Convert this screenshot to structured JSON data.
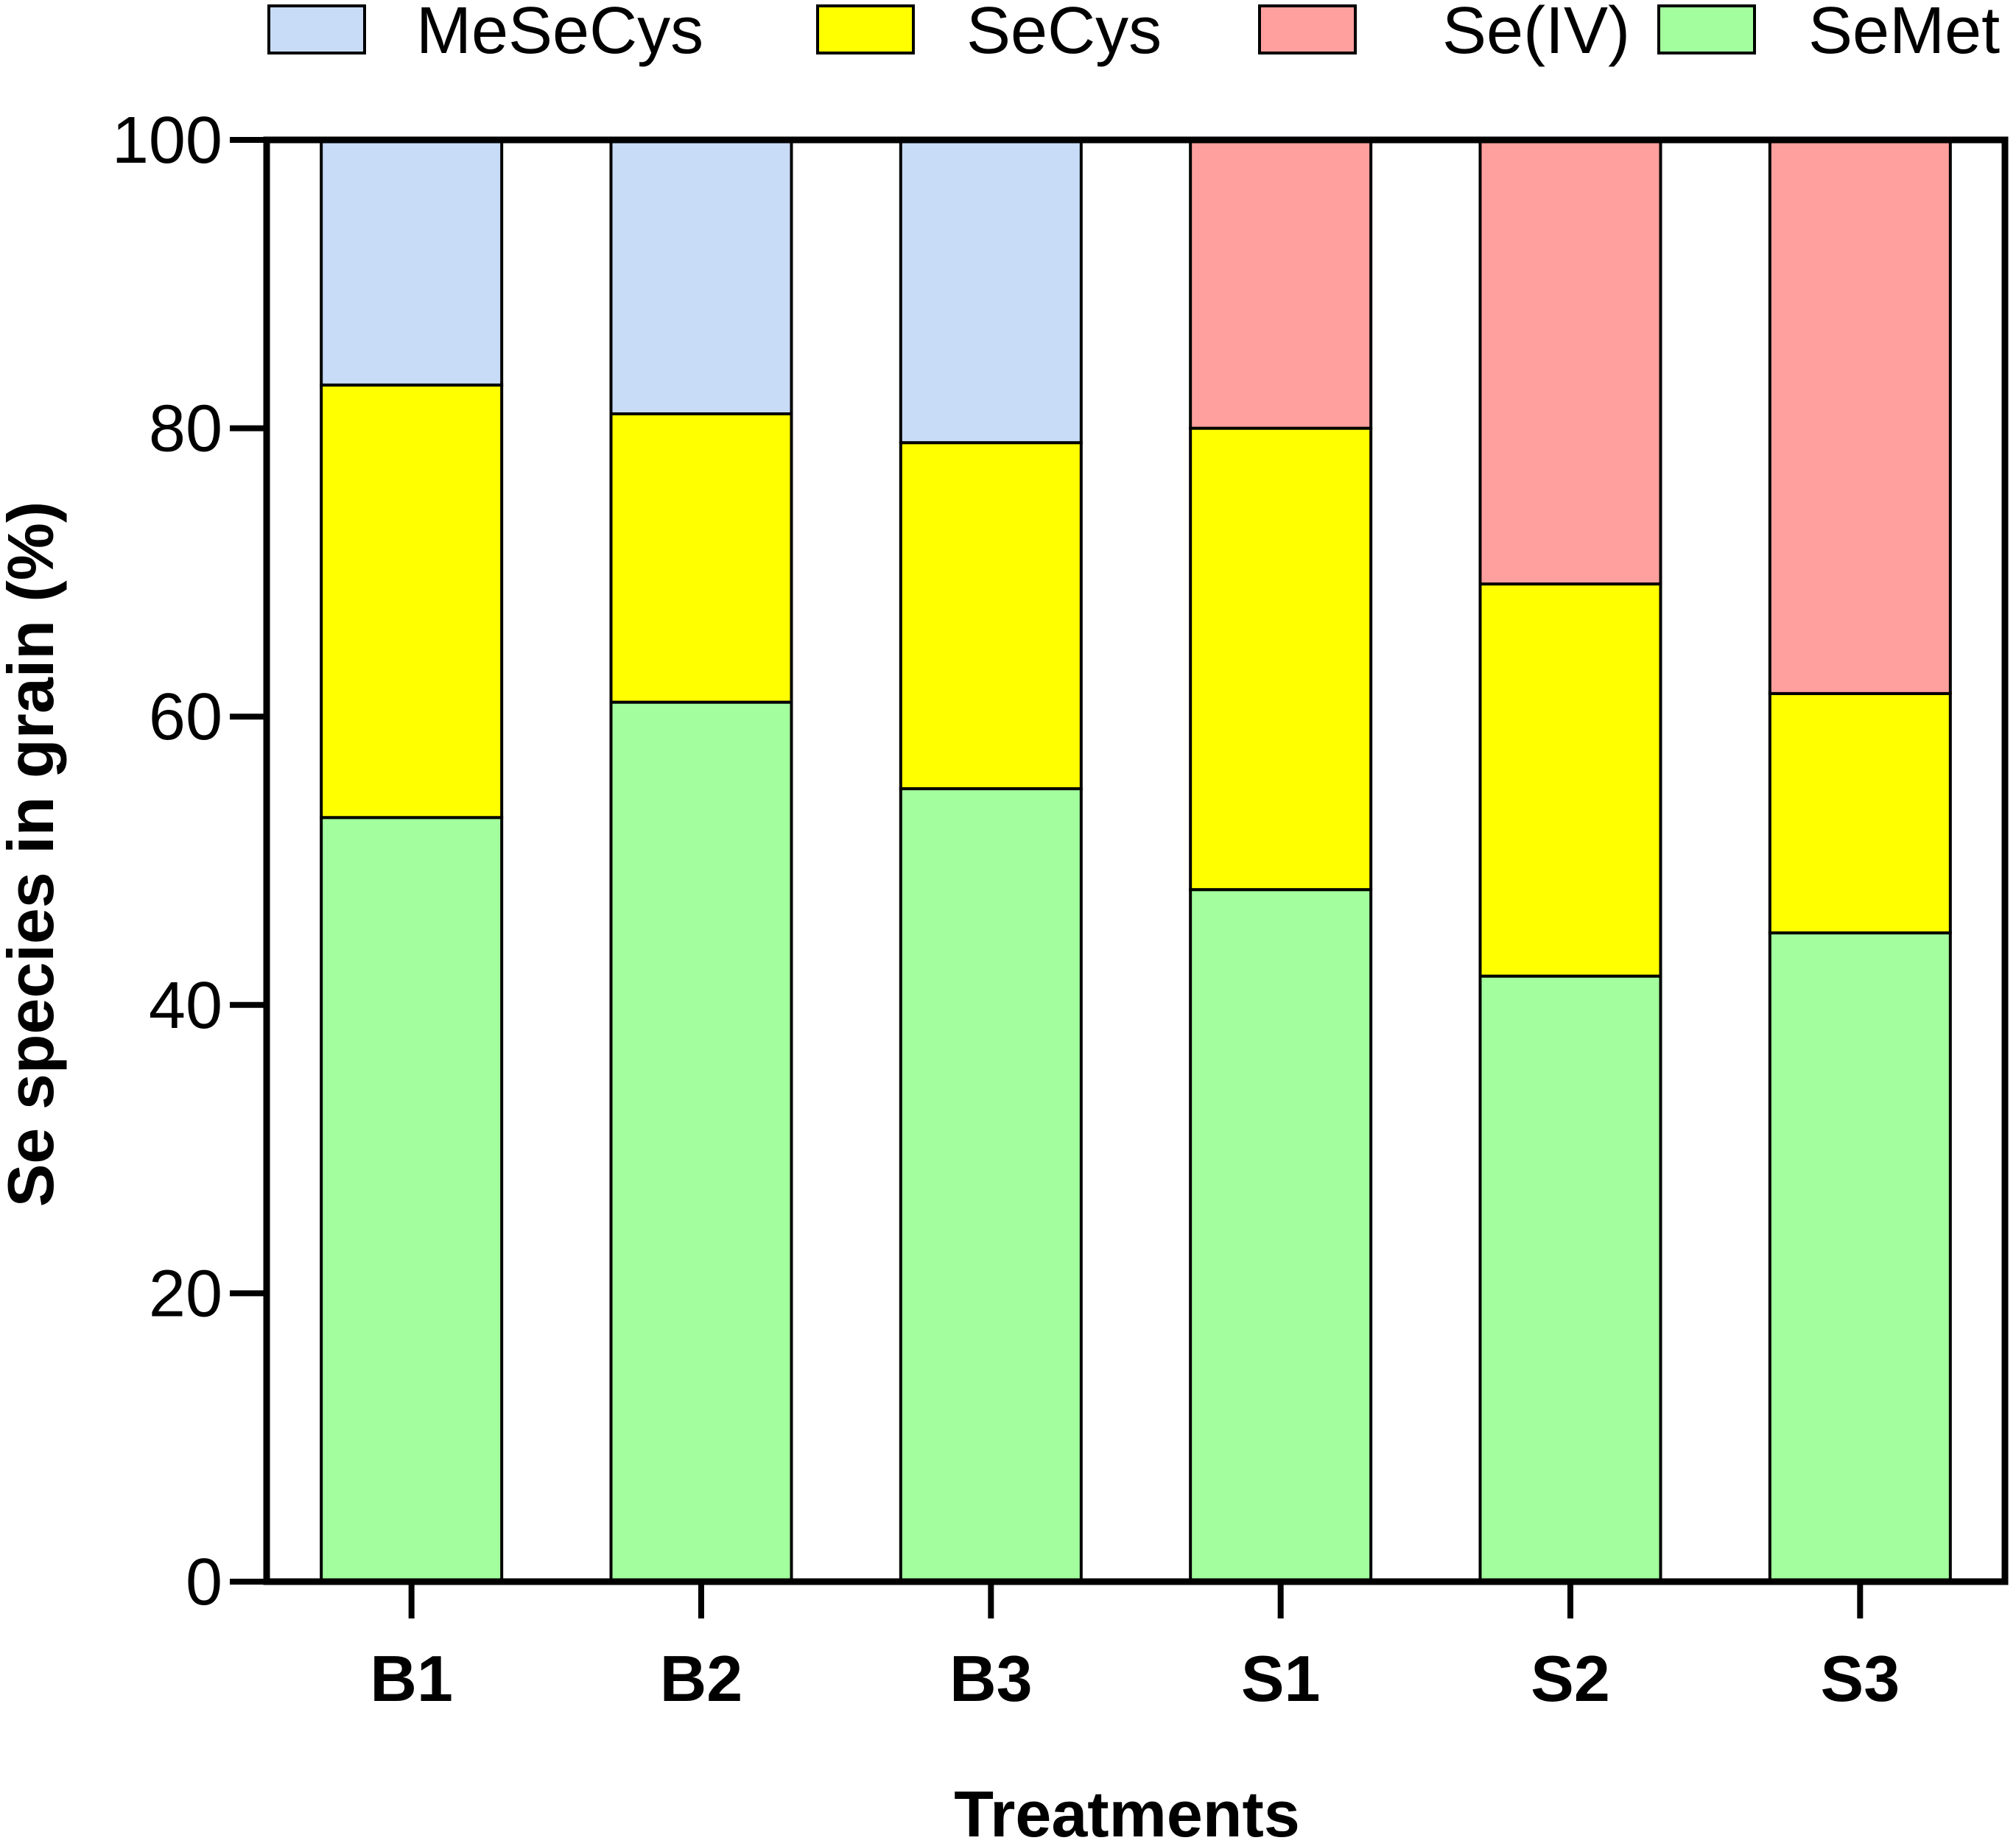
{
  "chart_data": {
    "type": "bar",
    "stacked": true,
    "xlabel": "Treatments",
    "ylabel": "Se species in grain (%)",
    "ylim": [
      0,
      100
    ],
    "yticks": [
      "0",
      "20",
      "40",
      "60",
      "80",
      "100"
    ],
    "categories": [
      "B1",
      "B2",
      "B3",
      "S1",
      "S2",
      "S3"
    ],
    "legend_position": "top",
    "series": [
      {
        "name": "SeMet",
        "color": "#a3ff9e",
        "values": [
          53,
          61,
          55,
          48,
          42,
          45
        ]
      },
      {
        "name": "SeCys",
        "color": "#ffff00",
        "values": [
          30,
          20,
          24,
          32,
          27.2,
          16.6
        ]
      },
      {
        "name": "Se(IV)",
        "color": "#ffa09e",
        "values": [
          0,
          0,
          0,
          20,
          30.8,
          38.4
        ]
      },
      {
        "name": "MeSeCys",
        "color": "#c8dcf7",
        "values": [
          17,
          19,
          21,
          0,
          0,
          0
        ]
      }
    ],
    "legend_order": [
      "MeSeCys",
      "SeCys",
      "Se(IV)",
      "SeMet"
    ]
  }
}
